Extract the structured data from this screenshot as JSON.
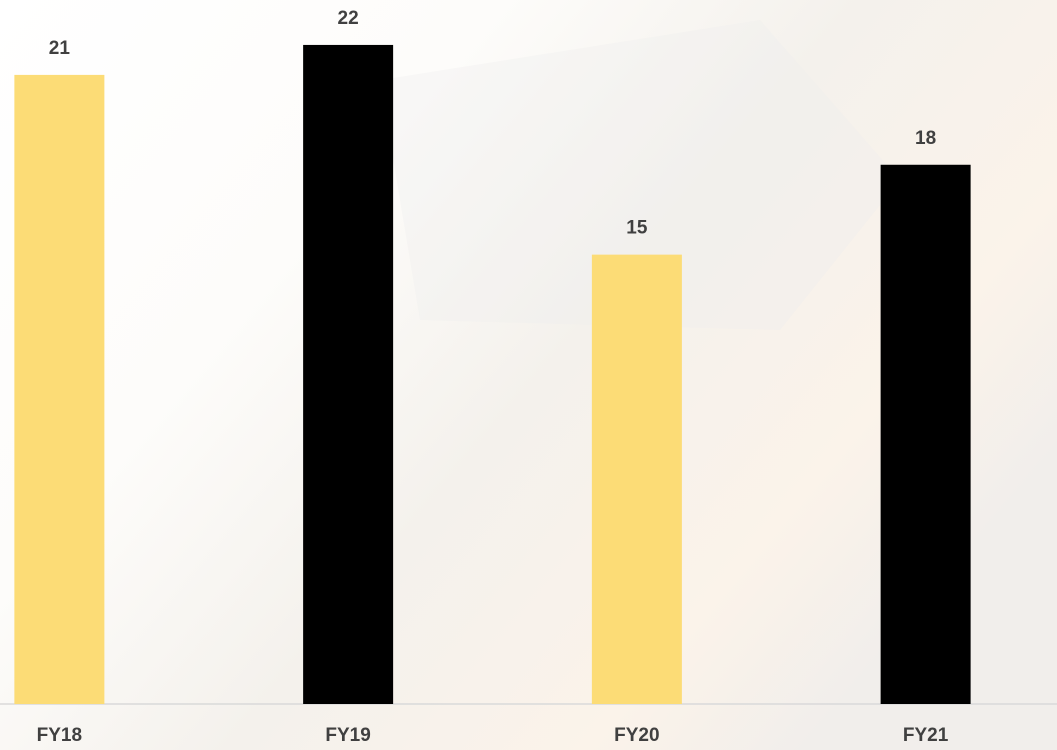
{
  "chart_data": {
    "type": "bar",
    "categories": [
      "FY18",
      "FY19",
      "FY20",
      "FY21"
    ],
    "values": [
      21,
      22,
      15,
      18
    ],
    "colors": [
      "#fcdc76",
      "#000000",
      "#fcdc76",
      "#000000"
    ],
    "ylim": [
      0,
      23.5
    ],
    "data_labels": true
  }
}
